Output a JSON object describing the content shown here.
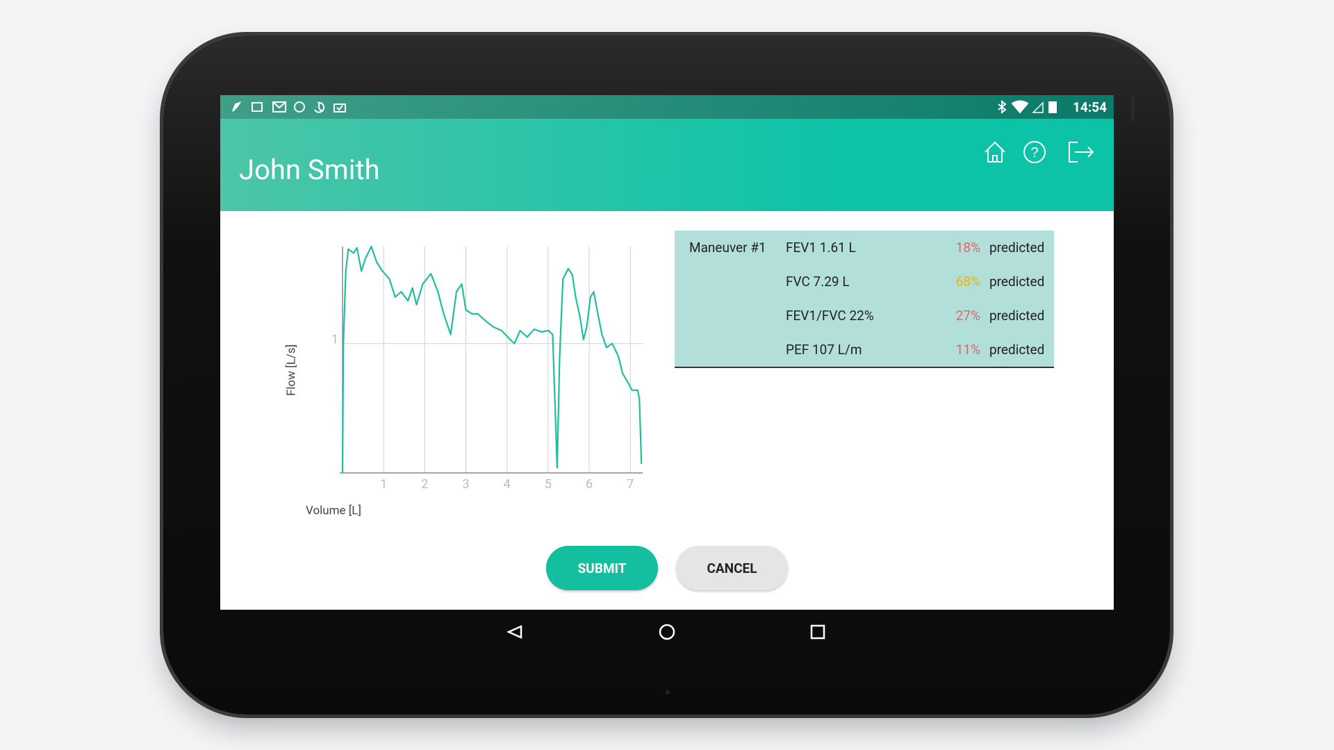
{
  "status_bar": {
    "time": "14:54"
  },
  "header": {
    "title": "John Smith"
  },
  "chart_data": {
    "type": "line",
    "x_label": "Volume [L]",
    "y_label": "Flow [L/s]",
    "x": [
      0,
      0.02,
      0.08,
      0.14,
      0.27,
      0.35,
      0.46,
      0.56,
      0.7,
      0.83,
      0.97,
      1.14,
      1.28,
      1.43,
      1.59,
      1.7,
      1.8,
      1.95,
      2.15,
      2.32,
      2.46,
      2.63,
      2.77,
      2.9,
      3.0,
      3.15,
      3.29,
      3.46,
      3.66,
      3.87,
      4.08,
      4.18,
      4.32,
      4.49,
      4.66,
      4.84,
      5.01,
      5.11,
      5.22,
      5.28,
      5.36,
      5.49,
      5.59,
      5.67,
      5.78,
      5.86,
      5.94,
      6.03,
      6.11,
      6.21,
      6.31,
      6.42,
      6.56,
      6.71,
      6.81,
      6.94,
      7.04,
      7.18,
      7.22,
      7.27
    ],
    "series": [
      {
        "color": "#1dbf9f",
        "values": [
          0,
          1.0,
          1.56,
          1.73,
          1.7,
          1.74,
          1.56,
          1.66,
          1.75,
          1.63,
          1.56,
          1.5,
          1.36,
          1.4,
          1.33,
          1.43,
          1.3,
          1.46,
          1.54,
          1.4,
          1.23,
          1.07,
          1.4,
          1.46,
          1.26,
          1.23,
          1.23,
          1.18,
          1.13,
          1.1,
          1.03,
          1.0,
          1.1,
          1.05,
          1.11,
          1.09,
          1.1,
          1.07,
          0.04,
          0.9,
          1.5,
          1.58,
          1.53,
          1.36,
          1.2,
          1.03,
          1.13,
          1.36,
          1.4,
          1.23,
          1.07,
          0.97,
          1.0,
          0.9,
          0.77,
          0.7,
          0.64,
          0.64,
          0.57,
          0.07
        ]
      }
    ],
    "xlim": [
      0,
      7.3
    ],
    "ylim": [
      0,
      1.75
    ],
    "xticks": [
      1,
      2,
      3,
      4,
      5,
      6,
      7
    ],
    "yticks": [
      1
    ],
    "grid": true
  },
  "table": {
    "label": "Maneuver #1",
    "rows": [
      {
        "metric": "FEV1 1.61 L",
        "percent": "18%",
        "percent_color": "#e06666",
        "note": "predicted"
      },
      {
        "metric": "FVC 7.29 L",
        "percent": "68%",
        "percent_color": "#f0b400",
        "note": "predicted"
      },
      {
        "metric": "FEV1/FVC 22%",
        "percent": "27%",
        "percent_color": "#e06666",
        "note": "predicted"
      },
      {
        "metric": "PEF 107 L/m",
        "percent": "11%",
        "percent_color": "#e06666",
        "note": "predicted"
      }
    ]
  },
  "buttons": {
    "submit": "SUBMIT",
    "cancel": "CANCEL"
  }
}
